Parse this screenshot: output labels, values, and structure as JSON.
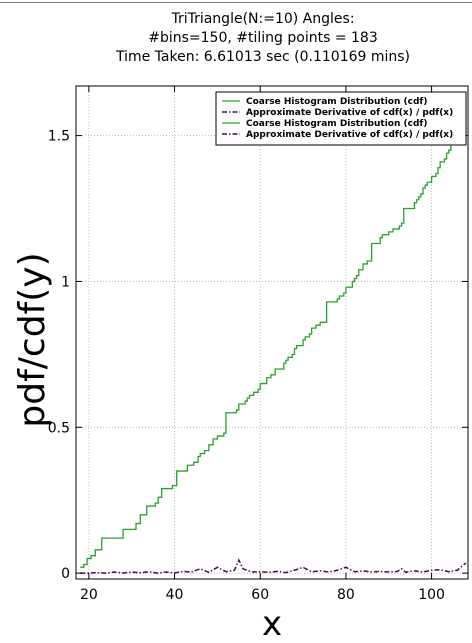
{
  "chart_data": {
    "type": "line",
    "title_lines": [
      "TriTriangle(N:=10) Angles:",
      "#bins=150, #tiling points = 183",
      "Time Taken: 6.61013 sec (0.110169 mins)"
    ],
    "xlabel": "x",
    "ylabel": "pdf/cdf(y)",
    "xlim": [
      17,
      108.5
    ],
    "ylim": [
      -0.02,
      1.67
    ],
    "x_ticks": [
      20,
      40,
      60,
      80,
      100
    ],
    "x_tick_labels": [
      "20",
      "40",
      "60",
      "80",
      "100"
    ],
    "y_ticks": [
      0,
      0.5,
      1,
      1.5
    ],
    "y_tick_labels": [
      "0",
      "0.5",
      "1",
      "1.5"
    ],
    "grid": true,
    "legend_position": "top-right",
    "colors": {
      "cdf": "#2ca02c",
      "pdf": "#4b0a4b",
      "axes": "#000000",
      "grid": "#b0b0b0"
    },
    "series": [
      {
        "name": "Coarse Histogram Distribution (cdf)",
        "style": "steps",
        "x": [
          18.0,
          18.8,
          19.6,
          20.5,
          21.5,
          23.0,
          26.0,
          28.0,
          29.5,
          31.0,
          32.0,
          33.5,
          35.5,
          36.2,
          37.0,
          38.5,
          39.5,
          40.5,
          42.0,
          43.0,
          44.5,
          45.5,
          46.0,
          47.0,
          48.0,
          49.0,
          50.0,
          51.0,
          51.5,
          52.0,
          54.5,
          55.0,
          56.5,
          57.0,
          57.5,
          58.5,
          59.5,
          60.0,
          60.5,
          61.5,
          62.5,
          63.5,
          64.5,
          65.5,
          66.0,
          66.5,
          67.5,
          68.0,
          68.5,
          69.0,
          70.0,
          70.5,
          71.5,
          72.0,
          73.0,
          74.0,
          75.0,
          75.5,
          77.0,
          78.0,
          78.5,
          79.5,
          80.0,
          81.0,
          81.5,
          82.0,
          82.5,
          83.0,
          84.0,
          85.0,
          85.5,
          86.0,
          87.0,
          88.0,
          88.5,
          90.0,
          91.0,
          92.0,
          92.5,
          93.0,
          93.5,
          95.0,
          96.0,
          96.5,
          97.0,
          97.5,
          98.0,
          98.5,
          99.0,
          100.0,
          100.5,
          101.0,
          101.5,
          102.0,
          103.0,
          103.5,
          104.0,
          104.5,
          105.0,
          105.5,
          106.0,
          106.5,
          107.0,
          107.5
        ],
        "y": [
          0.02,
          0.03,
          0.05,
          0.06,
          0.08,
          0.12,
          0.12,
          0.15,
          0.15,
          0.17,
          0.2,
          0.23,
          0.24,
          0.26,
          0.29,
          0.29,
          0.3,
          0.35,
          0.35,
          0.37,
          0.38,
          0.4,
          0.41,
          0.42,
          0.44,
          0.46,
          0.47,
          0.47,
          0.48,
          0.55,
          0.56,
          0.58,
          0.59,
          0.6,
          0.61,
          0.62,
          0.63,
          0.65,
          0.65,
          0.67,
          0.68,
          0.7,
          0.7,
          0.72,
          0.73,
          0.74,
          0.75,
          0.77,
          0.78,
          0.78,
          0.8,
          0.81,
          0.82,
          0.84,
          0.85,
          0.86,
          0.86,
          0.93,
          0.93,
          0.94,
          0.95,
          0.96,
          0.98,
          0.98,
          1.0,
          1.01,
          1.02,
          1.04,
          1.06,
          1.07,
          1.07,
          1.13,
          1.13,
          1.15,
          1.16,
          1.17,
          1.18,
          1.18,
          1.19,
          1.2,
          1.25,
          1.25,
          1.27,
          1.28,
          1.29,
          1.3,
          1.32,
          1.33,
          1.34,
          1.36,
          1.36,
          1.37,
          1.39,
          1.41,
          1.42,
          1.44,
          1.45,
          1.47,
          1.48,
          1.5,
          1.52,
          1.54,
          1.57,
          1.6
        ]
      },
      {
        "name": "Approximate Derivative of cdf(x) / pdf(x)",
        "style": "dashdot",
        "x": [
          18,
          20,
          22,
          24,
          26,
          28,
          30,
          32,
          34,
          36,
          38,
          40,
          42,
          44,
          46,
          48,
          50,
          52,
          54,
          55,
          56,
          58,
          60,
          62,
          64,
          66,
          68,
          70,
          72,
          74,
          76,
          78,
          80,
          82,
          84,
          86,
          88,
          90,
          92,
          93,
          94,
          96,
          98,
          100,
          102,
          104,
          106,
          108
        ],
        "y": [
          0.0,
          0.0,
          0.002,
          0.0,
          0.004,
          0.0,
          0.004,
          0.001,
          0.005,
          0.0,
          0.004,
          0.001,
          0.006,
          0.004,
          0.015,
          0.003,
          0.02,
          0.005,
          0.01,
          0.045,
          0.015,
          0.004,
          0.005,
          0.003,
          0.006,
          0.002,
          0.01,
          0.02,
          0.005,
          0.008,
          0.004,
          0.01,
          0.02,
          0.005,
          0.008,
          0.004,
          0.006,
          0.004,
          0.006,
          0.015,
          0.003,
          0.008,
          0.004,
          0.01,
          0.012,
          0.005,
          0.01,
          0.035
        ]
      },
      {
        "name": "Coarse Histogram Distribution (cdf)",
        "style": "steps",
        "duplicate_of": 0
      },
      {
        "name": "Approximate Derivative of cdf(x) / pdf(x)",
        "style": "dashdot",
        "duplicate_of": 1
      }
    ]
  }
}
